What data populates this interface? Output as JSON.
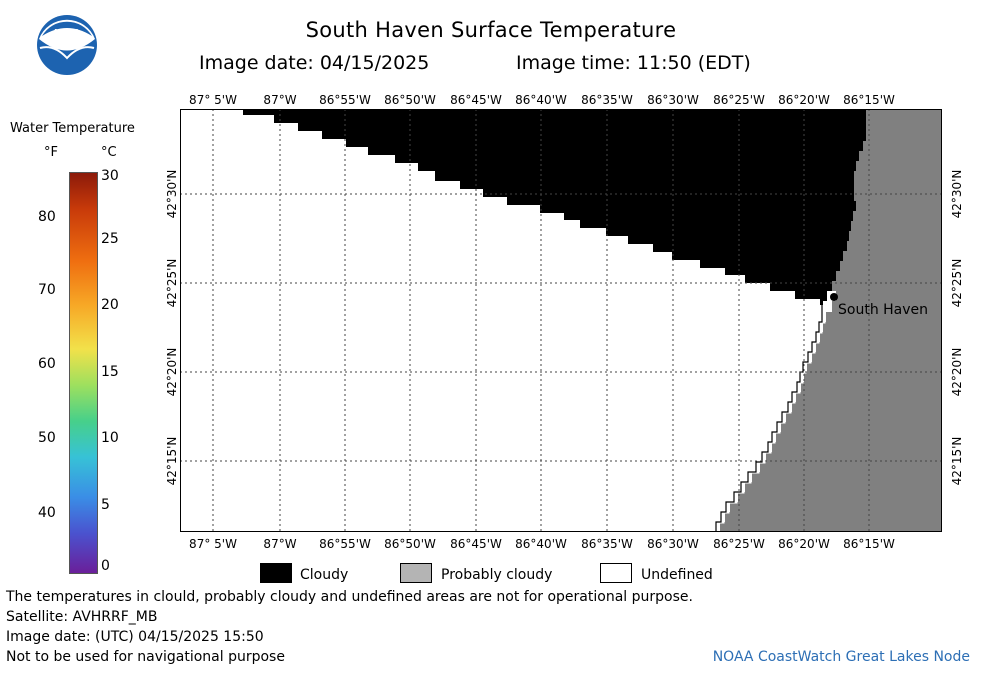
{
  "title": "South Haven Surface Temperature",
  "image_date": "Image date: 04/15/2025",
  "image_time": "Image time: 11:50 (EDT)",
  "logo_text": "NOAA",
  "colorbar": {
    "title": "Water Temperature",
    "unit_f": "°F",
    "unit_c": "°C",
    "f_ticks": [
      "80",
      "70",
      "60",
      "50",
      "40"
    ],
    "c_ticks": [
      "30",
      "25",
      "20",
      "15",
      "10",
      "5",
      "0"
    ]
  },
  "longitude_labels": [
    "87° 5'W",
    "87°W",
    "86°55'W",
    "86°50'W",
    "86°45'W",
    "86°40'W",
    "86°35'W",
    "86°30'W",
    "86°25'W",
    "86°20'W",
    "86°15'W"
  ],
  "latitude_labels": [
    "42°30'N",
    "42°25'N",
    "42°20'N",
    "42°15'N"
  ],
  "place_label": "South Haven",
  "map_legend": {
    "cloudy": "Cloudy",
    "probably_cloudy": "Probably cloudy",
    "undefined": "Undefined"
  },
  "colors": {
    "cloudy": "#000000",
    "probably_cloudy": "#808080",
    "undefined": "#ffffff",
    "credit": "#2d6fb5"
  },
  "footer": {
    "disclaimer": "The temperatures in clould, probably cloudy and undefined areas are not for operational purpose.",
    "satellite": "Satellite: AVHRRF_MB",
    "utc_date": "Image date: (UTC) 04/15/2025  15:50",
    "nav_note": "Not to be used for navigational purpose",
    "credit": "NOAA CoastWatch Great Lakes Node"
  }
}
